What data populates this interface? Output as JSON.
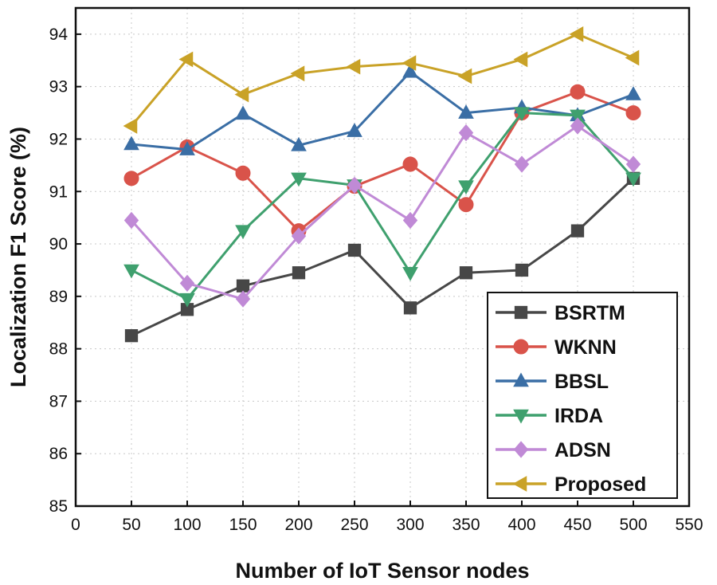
{
  "chart_data": {
    "type": "line",
    "xlabel": "Number of IoT Sensor nodes",
    "ylabel": "Localization F1 Score (%)",
    "xlim": [
      0,
      550
    ],
    "ylim": [
      85,
      94.5
    ],
    "x_ticks": [
      0,
      50,
      100,
      150,
      200,
      250,
      300,
      350,
      400,
      450,
      500,
      550
    ],
    "y_ticks": [
      85,
      86,
      87,
      88,
      89,
      90,
      91,
      92,
      93,
      94
    ],
    "grid": true,
    "legend_position": "bottom-right",
    "x": [
      50,
      100,
      150,
      200,
      250,
      300,
      350,
      400,
      450,
      500
    ],
    "series": [
      {
        "name": "BSRTM",
        "color": "#474747",
        "marker": "square",
        "values": [
          88.25,
          88.75,
          89.2,
          89.45,
          89.88,
          88.78,
          89.45,
          89.5,
          90.25,
          91.25
        ]
      },
      {
        "name": "WKNN",
        "color": "#d9534a",
        "marker": "circle",
        "values": [
          91.25,
          91.85,
          91.35,
          90.25,
          91.1,
          91.52,
          90.75,
          92.5,
          92.9,
          92.5
        ]
      },
      {
        "name": "BBSL",
        "color": "#3a6ea5",
        "marker": "triangle-up",
        "values": [
          91.9,
          91.8,
          92.48,
          91.88,
          92.15,
          93.28,
          92.5,
          92.6,
          92.45,
          92.85
        ]
      },
      {
        "name": "IRDA",
        "color": "#3fa06e",
        "marker": "triangle-down",
        "values": [
          89.5,
          88.95,
          90.25,
          91.25,
          91.12,
          89.45,
          91.1,
          92.5,
          92.45,
          91.25
        ]
      },
      {
        "name": "ADSN",
        "color": "#c08ad6",
        "marker": "diamond",
        "values": [
          90.45,
          89.25,
          88.95,
          90.15,
          91.12,
          90.45,
          92.12,
          91.52,
          92.25,
          91.52
        ]
      },
      {
        "name": "Proposed",
        "color": "#c9a227",
        "marker": "triangle-left",
        "values": [
          92.25,
          93.52,
          92.85,
          93.25,
          93.38,
          93.45,
          93.2,
          93.52,
          94.0,
          93.55
        ]
      }
    ]
  }
}
